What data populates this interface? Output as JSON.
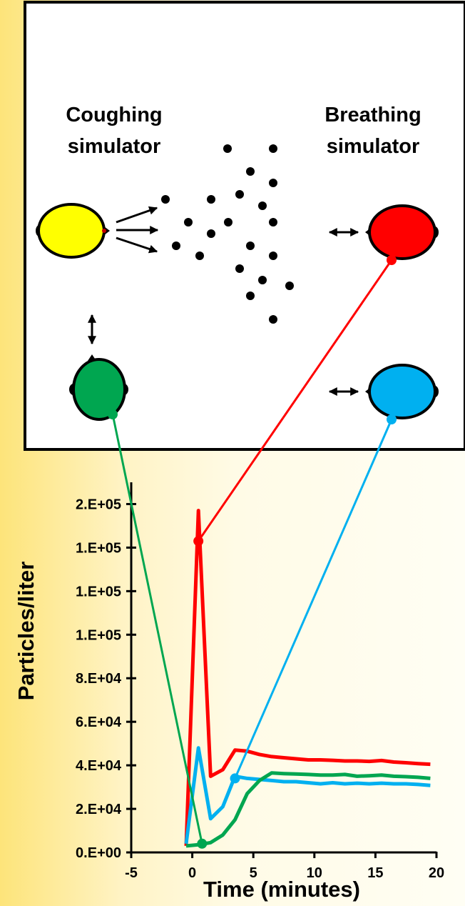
{
  "diagram": {
    "coughing_label": [
      "Coughing",
      "simulator"
    ],
    "breathing_label": [
      "Breathing",
      "simulator"
    ],
    "heads": [
      {
        "name": "coughing-simulator-head",
        "color": "#ffff00"
      },
      {
        "name": "breathing-simulator-head-red",
        "color": "#ff0000"
      },
      {
        "name": "breathing-simulator-head-green",
        "color": "#00a650"
      },
      {
        "name": "breathing-simulator-head-blue",
        "color": "#00b0f0"
      }
    ]
  },
  "chart_data": {
    "type": "line",
    "xlabel": "Time (minutes)",
    "ylabel": "Particles/liter",
    "xlim": [
      -5,
      20
    ],
    "ylim": [
      0,
      170000
    ],
    "x_ticks": [
      -5,
      0,
      5,
      10,
      15,
      20
    ],
    "x_tick_labels": [
      "-5",
      "0",
      "5",
      "10",
      "15",
      "20"
    ],
    "y_ticks": [
      0,
      20000,
      40000,
      60000,
      80000,
      100000,
      120000,
      140000,
      160000
    ],
    "y_tick_labels": [
      "0.E+00",
      "2.E+04",
      "4.E+04",
      "6.E+04",
      "8.E+04",
      "1.E+05",
      "1.E+05",
      "1.E+05",
      "2.E+05"
    ],
    "series": [
      {
        "color": "#ff0000",
        "x": [
          -0.5,
          0.5,
          1.5,
          2.5,
          3.5,
          4.5,
          5.5,
          6.5,
          7.5,
          8.5,
          9.5,
          10.5,
          11.5,
          12.5,
          13.5,
          14.5,
          15.5,
          16.5,
          17.5,
          18.5,
          19.5
        ],
        "y": [
          3000,
          157000,
          35000,
          38000,
          47000,
          46500,
          45000,
          44000,
          43500,
          43000,
          42500,
          42500,
          42300,
          42000,
          42000,
          41800,
          42200,
          41500,
          41200,
          40800,
          40500
        ]
      },
      {
        "color": "#00b0f0",
        "x": [
          -0.5,
          0.5,
          1.5,
          2.5,
          3.5,
          4.5,
          5.5,
          6.5,
          7.5,
          8.5,
          9.5,
          10.5,
          11.5,
          12.5,
          13.5,
          14.5,
          15.5,
          16.5,
          17.5,
          18.5,
          19.5
        ],
        "y": [
          4000,
          48000,
          15500,
          21000,
          35000,
          34000,
          33500,
          33000,
          32500,
          32500,
          32000,
          31500,
          32000,
          31500,
          31800,
          31500,
          31800,
          31500,
          31500,
          31200,
          30800
        ]
      },
      {
        "color": "#00a650",
        "x": [
          -0.5,
          0.5,
          1.5,
          2.5,
          3.5,
          4.5,
          5.5,
          6.5,
          7.5,
          8.5,
          9.5,
          10.5,
          11.5,
          12.5,
          13.5,
          14.5,
          15.5,
          16.5,
          17.5,
          18.5,
          19.5
        ],
        "y": [
          3000,
          3500,
          4500,
          8000,
          15000,
          27000,
          33000,
          36500,
          36200,
          36000,
          35800,
          35500,
          35500,
          35800,
          35000,
          35200,
          35500,
          35000,
          34800,
          34500,
          34000
        ]
      }
    ],
    "markers": [
      {
        "color": "#ff0000",
        "x": 0.5,
        "y": 143000
      },
      {
        "color": "#00b0f0",
        "x": 3.5,
        "y": 34000
      },
      {
        "color": "#00a650",
        "x": 0.8,
        "y": 4000
      }
    ]
  }
}
